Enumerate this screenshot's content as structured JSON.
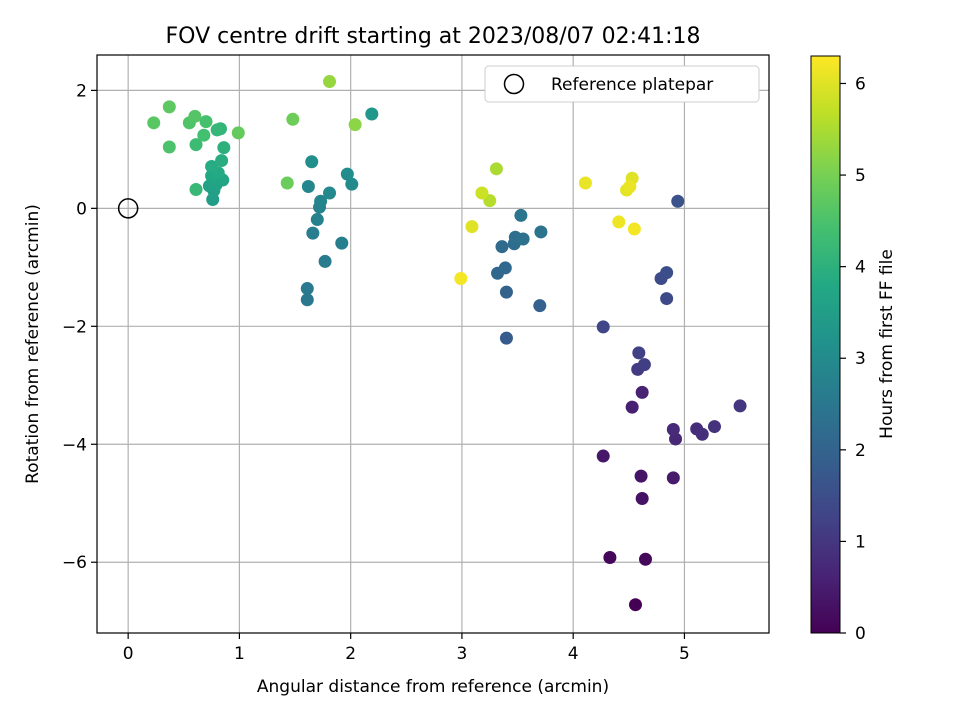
{
  "chart_data": {
    "type": "scatter",
    "title": "FOV centre drift starting at 2023/08/07 02:41:18",
    "xlabel": "Angular distance from reference (arcmin)",
    "ylabel": "Rotation from reference (arcmin)",
    "xlim": [
      -0.28,
      5.76
    ],
    "ylim": [
      -7.2,
      2.6
    ],
    "xticks": [
      0,
      1,
      2,
      3,
      4,
      5
    ],
    "yticks": [
      -6,
      -4,
      -2,
      0,
      2
    ],
    "xtick_labels": [
      "0",
      "1",
      "2",
      "3",
      "4",
      "5"
    ],
    "ytick_labels": [
      "−6",
      "−4",
      "−2",
      "0",
      "2"
    ],
    "grid": true,
    "legend": {
      "position": "top-right",
      "label": "Reference platepar"
    },
    "reference_point": {
      "x": 0,
      "y": 0
    },
    "colorbar": {
      "label": "Hours from first FF file",
      "colormap": "viridis",
      "range": [
        0,
        6.3
      ],
      "ticks": [
        0,
        1,
        2,
        3,
        4,
        5,
        6
      ],
      "tick_labels": [
        "0",
        "1",
        "2",
        "3",
        "4",
        "5",
        "6"
      ]
    },
    "points": [
      {
        "x": 4.56,
        "y": -6.72,
        "c": 0.0
      },
      {
        "x": 4.33,
        "y": -5.92,
        "c": 0.1
      },
      {
        "x": 4.65,
        "y": -5.95,
        "c": 0.15
      },
      {
        "x": 4.62,
        "y": -4.92,
        "c": 0.3
      },
      {
        "x": 4.61,
        "y": -4.54,
        "c": 0.35
      },
      {
        "x": 4.27,
        "y": -4.2,
        "c": 0.4
      },
      {
        "x": 4.9,
        "y": -4.57,
        "c": 0.45
      },
      {
        "x": 4.53,
        "y": -3.37,
        "c": 0.55
      },
      {
        "x": 4.62,
        "y": -3.12,
        "c": 0.6
      },
      {
        "x": 4.92,
        "y": -3.91,
        "c": 0.7
      },
      {
        "x": 4.9,
        "y": -3.75,
        "c": 0.75
      },
      {
        "x": 5.11,
        "y": -3.74,
        "c": 0.8
      },
      {
        "x": 5.16,
        "y": -3.83,
        "c": 0.85
      },
      {
        "x": 5.27,
        "y": -3.7,
        "c": 0.9
      },
      {
        "x": 5.5,
        "y": -3.35,
        "c": 1.0
      },
      {
        "x": 4.58,
        "y": -2.73,
        "c": 1.1
      },
      {
        "x": 4.64,
        "y": -2.65,
        "c": 1.15
      },
      {
        "x": 4.59,
        "y": -2.45,
        "c": 1.2
      },
      {
        "x": 4.27,
        "y": -2.01,
        "c": 1.3
      },
      {
        "x": 4.84,
        "y": -1.53,
        "c": 1.4
      },
      {
        "x": 4.79,
        "y": -1.19,
        "c": 1.45
      },
      {
        "x": 4.84,
        "y": -1.09,
        "c": 1.5
      },
      {
        "x": 4.94,
        "y": 0.12,
        "c": 1.6
      },
      {
        "x": 3.4,
        "y": -2.2,
        "c": 1.8
      },
      {
        "x": 3.7,
        "y": -1.65,
        "c": 1.95
      },
      {
        "x": 3.4,
        "y": -1.42,
        "c": 2.0
      },
      {
        "x": 3.32,
        "y": -1.1,
        "c": 2.1
      },
      {
        "x": 3.39,
        "y": -1.01,
        "c": 2.15
      },
      {
        "x": 3.36,
        "y": -0.65,
        "c": 2.2
      },
      {
        "x": 3.47,
        "y": -0.6,
        "c": 2.25
      },
      {
        "x": 3.48,
        "y": -0.49,
        "c": 2.3
      },
      {
        "x": 3.55,
        "y": -0.52,
        "c": 2.35
      },
      {
        "x": 3.71,
        "y": -0.4,
        "c": 2.4
      },
      {
        "x": 3.53,
        "y": -0.12,
        "c": 2.45
      },
      {
        "x": 1.61,
        "y": -1.55,
        "c": 2.5
      },
      {
        "x": 1.61,
        "y": -1.36,
        "c": 2.55
      },
      {
        "x": 1.77,
        "y": -0.9,
        "c": 2.6
      },
      {
        "x": 1.66,
        "y": -0.42,
        "c": 2.65
      },
      {
        "x": 1.92,
        "y": -0.59,
        "c": 2.7
      },
      {
        "x": 1.7,
        "y": -0.19,
        "c": 2.75
      },
      {
        "x": 1.72,
        "y": 0.02,
        "c": 2.8
      },
      {
        "x": 1.73,
        "y": 0.12,
        "c": 2.85
      },
      {
        "x": 1.62,
        "y": 0.37,
        "c": 2.9
      },
      {
        "x": 1.81,
        "y": 0.26,
        "c": 2.95
      },
      {
        "x": 2.01,
        "y": 0.41,
        "c": 3.0
      },
      {
        "x": 1.97,
        "y": 0.58,
        "c": 3.05
      },
      {
        "x": 1.65,
        "y": 0.79,
        "c": 3.1
      },
      {
        "x": 2.19,
        "y": 1.6,
        "c": 3.3
      },
      {
        "x": 0.76,
        "y": 0.15,
        "c": 3.5
      },
      {
        "x": 0.77,
        "y": 0.3,
        "c": 3.55
      },
      {
        "x": 0.73,
        "y": 0.38,
        "c": 3.6
      },
      {
        "x": 0.79,
        "y": 0.4,
        "c": 3.65
      },
      {
        "x": 0.85,
        "y": 0.48,
        "c": 3.7
      },
      {
        "x": 0.75,
        "y": 0.55,
        "c": 3.75
      },
      {
        "x": 0.81,
        "y": 0.6,
        "c": 3.8
      },
      {
        "x": 0.75,
        "y": 0.71,
        "c": 3.85
      },
      {
        "x": 0.84,
        "y": 0.81,
        "c": 3.9
      },
      {
        "x": 0.86,
        "y": 1.03,
        "c": 4.0
      },
      {
        "x": 0.83,
        "y": 1.35,
        "c": 4.1
      },
      {
        "x": 0.8,
        "y": 1.33,
        "c": 4.15
      },
      {
        "x": 0.61,
        "y": 0.32,
        "c": 4.2
      },
      {
        "x": 0.61,
        "y": 1.08,
        "c": 4.3
      },
      {
        "x": 0.68,
        "y": 1.24,
        "c": 4.4
      },
      {
        "x": 0.7,
        "y": 1.47,
        "c": 4.45
      },
      {
        "x": 0.37,
        "y": 1.04,
        "c": 4.5
      },
      {
        "x": 0.55,
        "y": 1.45,
        "c": 4.55
      },
      {
        "x": 0.6,
        "y": 1.56,
        "c": 4.6
      },
      {
        "x": 0.23,
        "y": 1.45,
        "c": 4.65
      },
      {
        "x": 0.37,
        "y": 1.72,
        "c": 4.7
      },
      {
        "x": 0.99,
        "y": 1.28,
        "c": 4.8
      },
      {
        "x": 1.43,
        "y": 0.43,
        "c": 4.85
      },
      {
        "x": 1.48,
        "y": 1.51,
        "c": 4.9
      },
      {
        "x": 2.04,
        "y": 1.42,
        "c": 5.2
      },
      {
        "x": 1.81,
        "y": 2.15,
        "c": 5.3
      },
      {
        "x": 3.31,
        "y": 0.67,
        "c": 5.5
      },
      {
        "x": 3.25,
        "y": 0.13,
        "c": 5.6
      },
      {
        "x": 3.18,
        "y": 0.26,
        "c": 5.8
      },
      {
        "x": 3.09,
        "y": -0.31,
        "c": 6.0
      },
      {
        "x": 2.99,
        "y": -1.19,
        "c": 6.2
      },
      {
        "x": 4.11,
        "y": 0.43,
        "c": 6.1
      },
      {
        "x": 4.53,
        "y": 0.51,
        "c": 6.0
      },
      {
        "x": 4.48,
        "y": 0.31,
        "c": 6.05
      },
      {
        "x": 4.51,
        "y": 0.37,
        "c": 6.1
      },
      {
        "x": 4.41,
        "y": -0.23,
        "c": 6.15
      },
      {
        "x": 4.55,
        "y": -0.35,
        "c": 6.2
      }
    ]
  }
}
